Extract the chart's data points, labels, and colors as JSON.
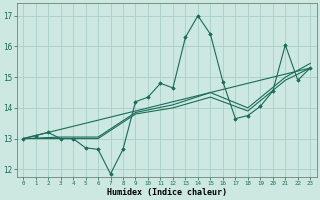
{
  "xlabel": "Humidex (Indice chaleur)",
  "xlim": [
    -0.5,
    23.5
  ],
  "ylim": [
    11.75,
    17.4
  ],
  "yticks": [
    12,
    13,
    14,
    15,
    16,
    17
  ],
  "xticks": [
    0,
    1,
    2,
    3,
    4,
    5,
    6,
    7,
    8,
    9,
    10,
    11,
    12,
    13,
    14,
    15,
    16,
    17,
    18,
    19,
    20,
    21,
    22,
    23
  ],
  "bg_color": "#cce8e0",
  "grid_color": "#a8d0c8",
  "line_color": "#1a6b5a",
  "series1_x": [
    0,
    1,
    2,
    3,
    4,
    5,
    6,
    7,
    8,
    9,
    10,
    11,
    12,
    13,
    14,
    15,
    16,
    17,
    18,
    19,
    20,
    21,
    22,
    23
  ],
  "series1_y": [
    13.0,
    13.1,
    13.2,
    13.0,
    13.0,
    12.7,
    12.65,
    11.85,
    12.65,
    14.2,
    14.35,
    14.8,
    14.65,
    16.3,
    17.0,
    16.4,
    14.85,
    13.65,
    13.75,
    14.05,
    14.55,
    16.05,
    14.9,
    15.3
  ],
  "series2_x": [
    0,
    3,
    6,
    9,
    12,
    15,
    18,
    21,
    23
  ],
  "series2_y": [
    13.0,
    13.0,
    13.0,
    13.8,
    14.0,
    14.35,
    13.9,
    14.9,
    15.3
  ],
  "series3_x": [
    0,
    3,
    6,
    9,
    12,
    15,
    18,
    21,
    23
  ],
  "series3_y": [
    13.0,
    13.05,
    13.05,
    13.85,
    14.1,
    14.5,
    14.0,
    15.0,
    15.45
  ],
  "series4_x": [
    0,
    23
  ],
  "series4_y": [
    13.0,
    15.3
  ]
}
